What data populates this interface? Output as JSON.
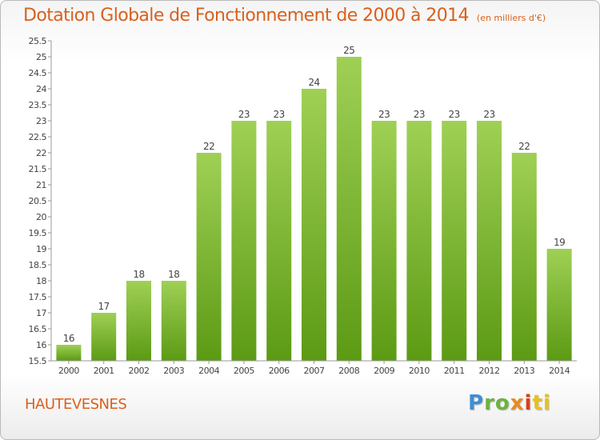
{
  "chart_data": {
    "type": "bar",
    "title": "Dotation Globale de Fonctionnement de 2000 à 2014",
    "unit_label": "(en milliers d'€)",
    "categories": [
      "2000",
      "2001",
      "2002",
      "2003",
      "2004",
      "2005",
      "2006",
      "2007",
      "2008",
      "2009",
      "2010",
      "2011",
      "2012",
      "2013",
      "2014"
    ],
    "values": [
      16,
      17,
      18,
      18,
      22,
      23,
      23,
      24,
      25,
      23,
      23,
      23,
      23,
      22,
      19
    ],
    "ylim": [
      15.5,
      25.5
    ],
    "yticks": [
      "15.5",
      "16",
      "16.5",
      "17",
      "17.5",
      "18",
      "18.5",
      "19",
      "19.5",
      "20",
      "20.5",
      "21",
      "21.5",
      "22",
      "22.5",
      "23",
      "23.5",
      "24",
      "24.5",
      "25",
      "25.5"
    ],
    "grid": false,
    "xlabel": "",
    "ylabel": ""
  },
  "commune": "HAUTEVESNES",
  "logo": {
    "p1": "P",
    "p2": "ro",
    "p3": "x",
    "p4": "i",
    "p5": "ti"
  },
  "colors": {
    "bar_top": "#9fd055",
    "bar_bottom": "#5c9a14",
    "title": "#d9601e"
  }
}
